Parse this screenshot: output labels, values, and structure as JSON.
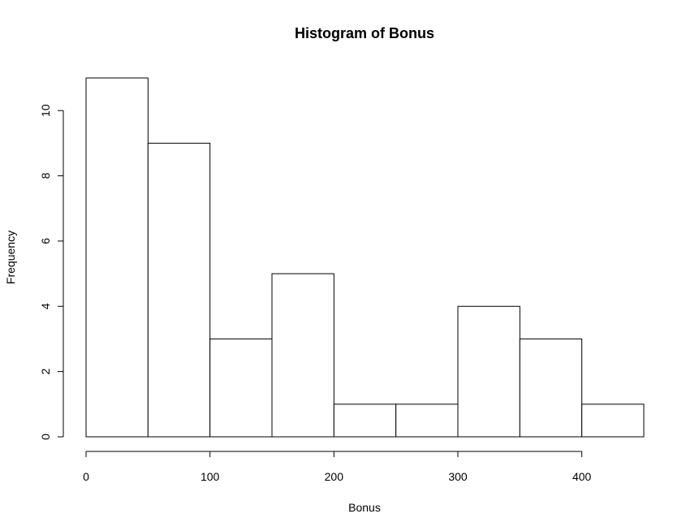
{
  "chart_data": {
    "type": "bar",
    "title": "Histogram of Bonus",
    "xlabel": "Bonus",
    "ylabel": "Frequency",
    "bins": [
      {
        "start": 0,
        "end": 50,
        "count": 11
      },
      {
        "start": 50,
        "end": 100,
        "count": 9
      },
      {
        "start": 100,
        "end": 150,
        "count": 3
      },
      {
        "start": 150,
        "end": 200,
        "count": 5
      },
      {
        "start": 200,
        "end": 250,
        "count": 1
      },
      {
        "start": 250,
        "end": 300,
        "count": 1
      },
      {
        "start": 300,
        "end": 350,
        "count": 4
      },
      {
        "start": 350,
        "end": 400,
        "count": 3
      },
      {
        "start": 400,
        "end": 450,
        "count": 1
      }
    ],
    "xlim": [
      0,
      450
    ],
    "ylim": [
      0,
      11
    ],
    "xticks": [
      0,
      100,
      200,
      300,
      400
    ],
    "yticks": [
      0,
      2,
      4,
      6,
      8,
      10
    ],
    "grid": false,
    "colors": {
      "bar_fill": "#ffffff",
      "bar_stroke": "#000000"
    }
  }
}
